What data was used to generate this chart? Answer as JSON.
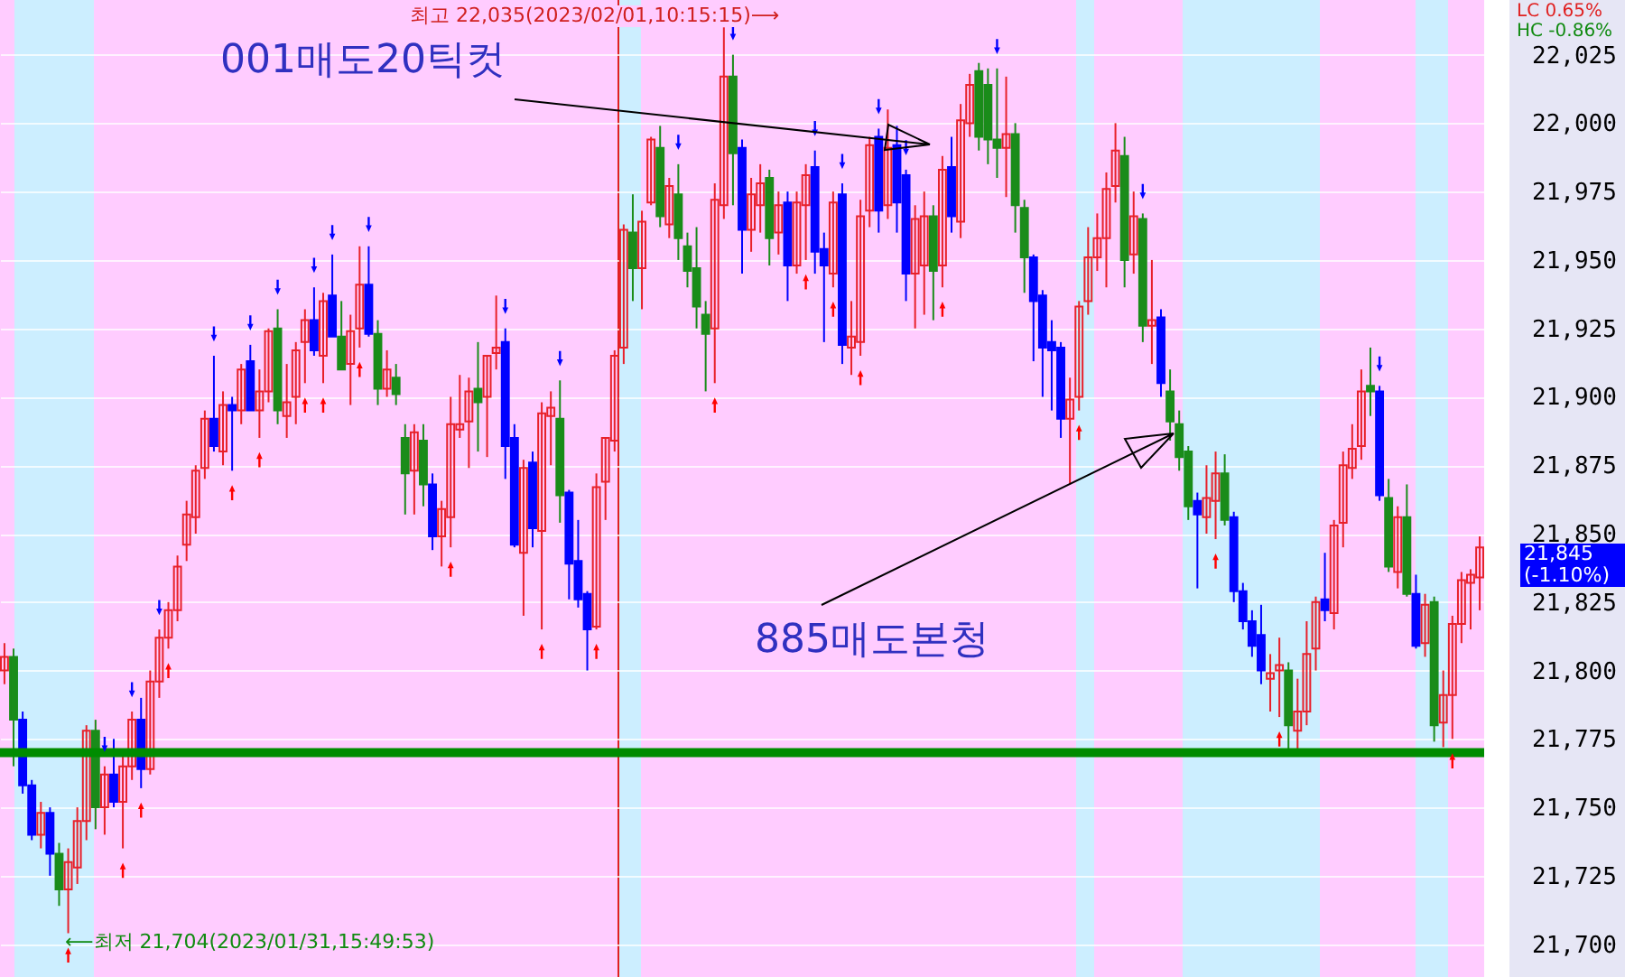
{
  "chart_data": {
    "type": "candlestick",
    "categories": [
      null,
      null,
      null,
      null,
      null,
      null,
      null,
      null,
      null,
      null,
      null,
      null,
      null,
      null,
      null,
      null,
      null,
      null,
      null,
      null,
      null,
      null,
      null,
      null,
      null,
      null,
      null,
      null,
      null,
      null,
      null,
      null,
      null,
      null,
      null,
      null,
      null,
      null,
      null,
      null,
      null,
      null,
      null,
      null,
      null,
      null,
      null,
      null,
      null,
      null,
      null,
      null,
      null,
      null,
      null,
      null,
      null,
      null,
      null,
      null,
      null,
      null,
      null,
      null,
      null,
      null,
      null,
      null,
      null,
      null,
      null,
      null,
      null,
      null,
      null,
      null,
      null,
      null,
      null,
      null,
      null,
      null,
      null,
      null,
      null,
      null,
      null,
      null,
      null,
      null,
      null,
      null,
      null,
      null,
      null,
      null,
      null,
      null,
      null,
      null,
      null,
      null,
      null,
      null,
      null,
      null,
      null,
      null,
      null,
      null,
      null,
      null,
      null,
      null,
      null,
      null,
      null,
      null,
      null,
      null,
      null,
      null,
      null,
      null,
      null,
      null,
      null,
      null,
      null,
      null,
      null,
      null,
      null,
      null,
      null,
      null,
      null,
      null,
      null,
      null,
      null,
      null,
      null,
      null,
      null,
      null,
      null,
      null,
      null,
      null,
      null,
      null,
      null,
      null,
      null,
      null,
      null,
      null,
      null,
      null,
      null,
      null,
      null
    ],
    "ohlc": [
      [
        21800,
        21810,
        21795,
        21805
      ],
      [
        21805,
        21808,
        21765,
        21782
      ],
      [
        21782,
        21785,
        21755,
        21758
      ],
      [
        21758,
        21760,
        21738,
        21740
      ],
      [
        21740,
        21752,
        21735,
        21748
      ],
      [
        21748,
        21750,
        21725,
        21733
      ],
      [
        21733,
        21737,
        21714,
        21720
      ],
      [
        21720,
        21735,
        21704,
        21730
      ],
      [
        21728,
        21750,
        21722,
        21745
      ],
      [
        21745,
        21780,
        21738,
        21778
      ],
      [
        21778,
        21782,
        21742,
        21750
      ],
      [
        21750,
        21765,
        21740,
        21762
      ],
      [
        21762,
        21775,
        21750,
        21752
      ],
      [
        21752,
        21770,
        21735,
        21765
      ],
      [
        21765,
        21785,
        21760,
        21782
      ],
      [
        21782,
        21790,
        21757,
        21764
      ],
      [
        21764,
        21800,
        21762,
        21796
      ],
      [
        21796,
        21815,
        21790,
        21812
      ],
      [
        21812,
        21825,
        21808,
        21822
      ],
      [
        21822,
        21842,
        21818,
        21838
      ],
      [
        21846,
        21862,
        21840,
        21857
      ],
      [
        21856,
        21875,
        21850,
        21873
      ],
      [
        21874,
        21895,
        21870,
        21892
      ],
      [
        21892,
        21915,
        21880,
        21882
      ],
      [
        21880,
        21902,
        21875,
        21897
      ],
      [
        21897,
        21900,
        21873,
        21895
      ],
      [
        21895,
        21912,
        21890,
        21910
      ],
      [
        21913,
        21919,
        21895,
        21895
      ],
      [
        21895,
        21910,
        21885,
        21902
      ],
      [
        21902,
        21925,
        21898,
        21924
      ],
      [
        21925,
        21932,
        21890,
        21895
      ],
      [
        21893,
        21912,
        21885,
        21898
      ],
      [
        21900,
        21920,
        21890,
        21917
      ],
      [
        21920,
        21932,
        21905,
        21928
      ],
      [
        21928,
        21940,
        21915,
        21917
      ],
      [
        21915,
        21938,
        21905,
        21935
      ],
      [
        21937,
        21952,
        21922,
        21922
      ],
      [
        21922,
        21935,
        21910,
        21910
      ],
      [
        21912,
        21930,
        21897,
        21924
      ],
      [
        21925,
        21955,
        21918,
        21941
      ],
      [
        21941,
        21955,
        21922,
        21923
      ],
      [
        21923,
        21928,
        21897,
        21903
      ],
      [
        21903,
        21917,
        21900,
        21910
      ],
      [
        21907,
        21912,
        21897,
        21901
      ],
      [
        21885,
        21890,
        21857,
        21872
      ],
      [
        21873,
        21890,
        21857,
        21887
      ],
      [
        21884,
        21890,
        21860,
        21868
      ],
      [
        21868,
        21872,
        21844,
        21849
      ],
      [
        21849,
        21862,
        21838,
        21859
      ],
      [
        21856,
        21900,
        21845,
        21890
      ],
      [
        21888,
        21908,
        21885,
        21890
      ],
      [
        21891,
        21907,
        21874,
        21902
      ],
      [
        21903,
        21920,
        21880,
        21898
      ],
      [
        21900,
        21915,
        21878,
        21915
      ],
      [
        21916,
        21937,
        21910,
        21918
      ],
      [
        21920,
        21925,
        21870,
        21882
      ],
      [
        21885,
        21890,
        21845,
        21846
      ],
      [
        21843,
        21877,
        21820,
        21874
      ],
      [
        21876,
        21880,
        21845,
        21852
      ],
      [
        21851,
        21898,
        21815,
        21894
      ],
      [
        21893,
        21902,
        21875,
        21896
      ],
      [
        21892,
        21906,
        21854,
        21864
      ],
      [
        21865,
        21866,
        21826,
        21839
      ],
      [
        21840,
        21855,
        21823,
        21826
      ],
      [
        21828,
        21829,
        21800,
        21815
      ],
      [
        21816,
        21872,
        21815,
        21867
      ],
      [
        21869,
        21885,
        21855,
        21885
      ],
      [
        21884,
        21917,
        21880,
        21915
      ],
      [
        21918,
        21963,
        21912,
        21961
      ],
      [
        21960,
        21974,
        21935,
        21947
      ],
      [
        21947,
        21968,
        21932,
        21964
      ],
      [
        21971,
        21995,
        21970,
        21994
      ],
      [
        21991,
        21999,
        21962,
        21966
      ],
      [
        21963,
        21980,
        21958,
        21977
      ],
      [
        21974,
        21985,
        21950,
        21958
      ],
      [
        21955,
        21960,
        21940,
        21946
      ],
      [
        21947,
        21962,
        21925,
        21933
      ],
      [
        21930,
        21935,
        21902,
        21923
      ],
      [
        21925,
        21978,
        21905,
        21972
      ],
      [
        21970,
        22035,
        21965,
        22017
      ],
      [
        22017,
        22025,
        21970,
        21989
      ],
      [
        21991,
        21994,
        21945,
        21961
      ],
      [
        21961,
        21980,
        21953,
        21974
      ],
      [
        21970,
        21985,
        21960,
        21978
      ],
      [
        21980,
        21983,
        21948,
        21958
      ],
      [
        21960,
        21975,
        21952,
        21970
      ],
      [
        21971,
        21975,
        21935,
        21948
      ],
      [
        21948,
        21975,
        21945,
        21971
      ],
      [
        21970,
        21985,
        21950,
        21981
      ],
      [
        21984,
        21990,
        21945,
        21953
      ],
      [
        21954,
        21960,
        21920,
        21948
      ],
      [
        21945,
        21975,
        21940,
        21971
      ],
      [
        21974,
        21978,
        21912,
        21919
      ],
      [
        21918,
        21935,
        21908,
        21922
      ],
      [
        21920,
        21972,
        21915,
        21966
      ],
      [
        21968,
        21995,
        21962,
        21992
      ],
      [
        21995,
        21998,
        21960,
        21968
      ],
      [
        21970,
        22005,
        21965,
        21991
      ],
      [
        21992,
        21999,
        21960,
        21971
      ],
      [
        21981,
        21983,
        21935,
        21945
      ],
      [
        21945,
        21970,
        21925,
        21965
      ],
      [
        21948,
        21975,
        21930,
        21966
      ],
      [
        21966,
        21970,
        21928,
        21946
      ],
      [
        21948,
        21988,
        21940,
        21983
      ],
      [
        21984,
        21995,
        21960,
        21966
      ],
      [
        21964,
        22007,
        21958,
        22001
      ],
      [
        22000,
        22018,
        21995,
        22014
      ],
      [
        22019,
        22022,
        21990,
        21995
      ],
      [
        22014,
        22020,
        21985,
        21994
      ],
      [
        21994,
        22020,
        21980,
        21991
      ],
      [
        21991,
        22017,
        21973,
        21996
      ],
      [
        21996,
        22000,
        21960,
        21970
      ],
      [
        21969,
        21972,
        21938,
        21951
      ],
      [
        21951,
        21952,
        21913,
        21935
      ],
      [
        21937,
        21939,
        21900,
        21918
      ],
      [
        21920,
        21928,
        21895,
        21917
      ],
      [
        21918,
        21920,
        21885,
        21892
      ],
      [
        21892,
        21907,
        21868,
        21899
      ],
      [
        21900,
        21935,
        21895,
        21933
      ],
      [
        21935,
        21962,
        21930,
        21951
      ],
      [
        21951,
        21967,
        21946,
        21958
      ],
      [
        21958,
        21982,
        21940,
        21976
      ],
      [
        21977,
        22000,
        21971,
        21990
      ],
      [
        21988,
        21995,
        21940,
        21950
      ],
      [
        21952,
        21975,
        21945,
        21966
      ],
      [
        21965,
        21967,
        21920,
        21926
      ],
      [
        21926,
        21950,
        21912,
        21928
      ],
      [
        21929,
        21932,
        21900,
        21905
      ],
      [
        21902,
        21910,
        21884,
        21891
      ],
      [
        21890,
        21895,
        21873,
        21878
      ],
      [
        21880,
        21882,
        21855,
        21860
      ],
      [
        21862,
        21865,
        21830,
        21857
      ],
      [
        21856,
        21875,
        21850,
        21863
      ],
      [
        21862,
        21880,
        21848,
        21872
      ],
      [
        21872,
        21879,
        21853,
        21855
      ],
      [
        21856,
        21858,
        21825,
        21829
      ],
      [
        21829,
        21832,
        21815,
        21818
      ],
      [
        21818,
        21822,
        21805,
        21809
      ],
      [
        21813,
        21824,
        21795,
        21800
      ],
      [
        21797,
        21806,
        21785,
        21799
      ],
      [
        21800,
        21812,
        21783,
        21802
      ],
      [
        21800,
        21803,
        21770,
        21780
      ],
      [
        21778,
        21797,
        21770,
        21785
      ],
      [
        21785,
        21818,
        21780,
        21806
      ],
      [
        21808,
        21827,
        21800,
        21825
      ],
      [
        21826,
        21843,
        21818,
        21822
      ],
      [
        21821,
        21855,
        21815,
        21853
      ],
      [
        21854,
        21880,
        21845,
        21875
      ],
      [
        21874,
        21890,
        21870,
        21881
      ],
      [
        21882,
        21910,
        21877,
        21902
      ],
      [
        21904,
        21918,
        21893,
        21902
      ],
      [
        21902,
        21904,
        21862,
        21864
      ],
      [
        21863,
        21870,
        21836,
        21838
      ],
      [
        21836,
        21860,
        21830,
        21856
      ],
      [
        21856,
        21868,
        21827,
        21828
      ],
      [
        21828,
        21835,
        21808,
        21809
      ],
      [
        21810,
        21828,
        21805,
        21824
      ],
      [
        21825,
        21827,
        21774,
        21780
      ],
      [
        21781,
        21800,
        21772,
        21791
      ],
      [
        21791,
        21820,
        21775,
        21817
      ],
      [
        21817,
        21836,
        21810,
        21833
      ],
      [
        21832,
        21837,
        21815,
        21835
      ],
      [
        21834,
        21849,
        21822,
        21845
      ]
    ],
    "colors": [
      "#e8202a",
      "#1a8c1a",
      "#0000ff",
      "#0000ff",
      "#e8202a",
      "#0000ff",
      "#1a8c1a",
      "#e8202a",
      "#e8202a",
      "#e8202a",
      "#1a8c1a",
      "#e8202a",
      "#0000ff",
      "#e8202a",
      "#e8202a",
      "#0000ff",
      "#e8202a",
      "#e8202a",
      "#e8202a",
      "#e8202a",
      "#e8202a",
      "#e8202a",
      "#e8202a",
      "#0000ff",
      "#e8202a",
      "#0000ff",
      "#e8202a",
      "#0000ff",
      "#e8202a",
      "#e8202a",
      "#1a8c1a",
      "#e8202a",
      "#e8202a",
      "#e8202a",
      "#0000ff",
      "#e8202a",
      "#0000ff",
      "#1a8c1a",
      "#e8202a",
      "#e8202a",
      "#0000ff",
      "#1a8c1a",
      "#e8202a",
      "#1a8c1a",
      "#1a8c1a",
      "#e8202a",
      "#1a8c1a",
      "#0000ff",
      "#e8202a",
      "#e8202a",
      "#e8202a",
      "#e8202a",
      "#1a8c1a",
      "#e8202a",
      "#e8202a",
      "#0000ff",
      "#0000ff",
      "#e8202a",
      "#0000ff",
      "#e8202a",
      "#e8202a",
      "#1a8c1a",
      "#0000ff",
      "#0000ff",
      "#0000ff",
      "#e8202a",
      "#e8202a",
      "#e8202a",
      "#e8202a",
      "#1a8c1a",
      "#e8202a",
      "#e8202a",
      "#1a8c1a",
      "#e8202a",
      "#1a8c1a",
      "#1a8c1a",
      "#1a8c1a",
      "#1a8c1a",
      "#e8202a",
      "#e8202a",
      "#1a8c1a",
      "#0000ff",
      "#e8202a",
      "#e8202a",
      "#1a8c1a",
      "#e8202a",
      "#0000ff",
      "#e8202a",
      "#e8202a",
      "#0000ff",
      "#0000ff",
      "#e8202a",
      "#0000ff",
      "#e8202a",
      "#e8202a",
      "#e8202a",
      "#0000ff",
      "#e8202a",
      "#0000ff",
      "#0000ff",
      "#e8202a",
      "#e8202a",
      "#1a8c1a",
      "#e8202a",
      "#0000ff",
      "#e8202a",
      "#e8202a",
      "#1a8c1a",
      "#1a8c1a",
      "#1a8c1a",
      "#e8202a",
      "#1a8c1a",
      "#1a8c1a",
      "#0000ff",
      "#0000ff",
      "#0000ff",
      "#0000ff",
      "#e8202a",
      "#e8202a",
      "#e8202a",
      "#e8202a",
      "#e8202a",
      "#e8202a",
      "#1a8c1a",
      "#e8202a",
      "#1a8c1a",
      "#e8202a",
      "#0000ff",
      "#1a8c1a",
      "#1a8c1a",
      "#1a8c1a",
      "#0000ff",
      "#e8202a",
      "#e8202a",
      "#1a8c1a",
      "#0000ff",
      "#0000ff",
      "#0000ff",
      "#0000ff",
      "#e8202a",
      "#e8202a",
      "#1a8c1a",
      "#e8202a",
      "#e8202a",
      "#e8202a",
      "#0000ff",
      "#e8202a",
      "#e8202a",
      "#e8202a",
      "#e8202a",
      "#1a8c1a",
      "#0000ff",
      "#1a8c1a",
      "#e8202a",
      "#1a8c1a",
      "#0000ff",
      "#e8202a",
      "#1a8c1a",
      "#e8202a",
      "#e8202a",
      "#e8202a",
      "#e8202a",
      "#e8202a"
    ],
    "series": [
      {
        "type": "scatter",
        "color": "#0000ff",
        "marker": "triangle",
        "values": [
          null,
          null,
          null,
          null,
          null,
          null,
          null,
          null,
          null,
          null,
          null,
          21773,
          null,
          null,
          21793,
          null,
          null,
          21823,
          null,
          null,
          null,
          null,
          null,
          21923,
          null,
          null,
          null,
          21927,
          null,
          null,
          21940,
          null,
          null,
          null,
          21948,
          null,
          21960,
          null,
          null,
          null,
          21963,
          null,
          null,
          null,
          null,
          null,
          null,
          null,
          null,
          null,
          null,
          null,
          null,
          null,
          null,
          21933,
          null,
          null,
          null,
          null,
          null,
          21914,
          null,
          null,
          null,
          null,
          null,
          null,
          null,
          null,
          null,
          null,
          null,
          null,
          21993,
          null,
          null,
          null,
          null,
          null,
          22033,
          null,
          null,
          null,
          null,
          null,
          null,
          null,
          null,
          21998,
          null,
          null,
          21986,
          null,
          null,
          null,
          22006,
          null,
          null,
          21991,
          null,
          null,
          null,
          null,
          null,
          null,
          null,
          null,
          null,
          22028,
          null,
          null,
          null,
          null,
          null,
          null,
          null,
          null,
          null,
          null,
          null,
          null,
          null,
          null,
          null,
          21975,
          null,
          null,
          null,
          null,
          null,
          null,
          null,
          null,
          null,
          null,
          null,
          null,
          null,
          null,
          null,
          null,
          null,
          null,
          null,
          null,
          null,
          null,
          null,
          null,
          null,
          21912,
          null,
          null,
          null,
          null,
          null,
          null,
          null,
          null,
          null,
          null,
          null
        ]
      },
      {
        "type": "scatter",
        "color": "#ff0000",
        "marker": "triangle",
        "values": [
          null,
          null,
          null,
          null,
          null,
          null,
          null,
          21696,
          null,
          null,
          null,
          null,
          null,
          21727,
          null,
          21749,
          null,
          null,
          21800,
          null,
          null,
          null,
          null,
          null,
          null,
          21865,
          null,
          null,
          21877,
          null,
          null,
          null,
          null,
          21897,
          null,
          21897,
          null,
          null,
          null,
          21910,
          null,
          null,
          null,
          null,
          null,
          null,
          null,
          null,
          null,
          21837,
          null,
          null,
          null,
          null,
          null,
          null,
          null,
          null,
          null,
          21807,
          null,
          null,
          null,
          null,
          null,
          21807,
          null,
          null,
          null,
          null,
          null,
          null,
          null,
          null,
          null,
          null,
          null,
          null,
          21897,
          null,
          null,
          null,
          null,
          null,
          null,
          null,
          null,
          null,
          21942,
          null,
          null,
          21932,
          null,
          null,
          21907,
          null,
          null,
          null,
          null,
          null,
          null,
          null,
          null,
          21932,
          null,
          null,
          null,
          null,
          null,
          null,
          null,
          null,
          null,
          null,
          null,
          null,
          null,
          null,
          21887,
          null,
          null,
          null,
          null,
          null,
          null,
          null,
          null,
          null,
          null,
          null,
          null,
          null,
          null,
          21840,
          null,
          null,
          null,
          null,
          null,
          null,
          21775,
          null,
          null,
          null,
          null,
          null,
          null,
          null,
          null,
          null,
          null,
          null,
          null,
          null,
          null,
          null,
          null,
          null,
          null,
          21767,
          null,
          null,
          null
        ]
      }
    ],
    "ylim": [
      21688,
      22045
    ],
    "yticks": [
      {
        "value": 21700,
        "label": "21,700"
      },
      {
        "value": 21725,
        "label": "21,725"
      },
      {
        "value": 21750,
        "label": "21,750"
      },
      {
        "value": 21775,
        "label": "21,775"
      },
      {
        "value": 21800,
        "label": "21,800"
      },
      {
        "value": 21825,
        "label": "21,825"
      },
      {
        "value": 21850,
        "label": "21,850"
      },
      {
        "value": 21875,
        "label": "21,875"
      },
      {
        "value": 21900,
        "label": "21,900"
      },
      {
        "value": 21925,
        "label": "21,925"
      },
      {
        "value": 21950,
        "label": "21,950"
      },
      {
        "value": 21975,
        "label": "21,975"
      },
      {
        "value": 22000,
        "label": "22,000"
      },
      {
        "value": 22025,
        "label": "22,025"
      }
    ],
    "grid": "y",
    "ref_lines": [
      {
        "axis": "y",
        "value": 21770,
        "color": "#008c00"
      }
    ],
    "annotations": [
      "최고 22,035(2023/02/01,10:15:15)⟶",
      "⟵최저 21,704(2023/01/31,15:49:53)",
      "001매도20틱컷",
      "885매도본청",
      "LC 0.65%",
      "HC -0.86%",
      "21,845 (-1.10%)"
    ]
  }
}
